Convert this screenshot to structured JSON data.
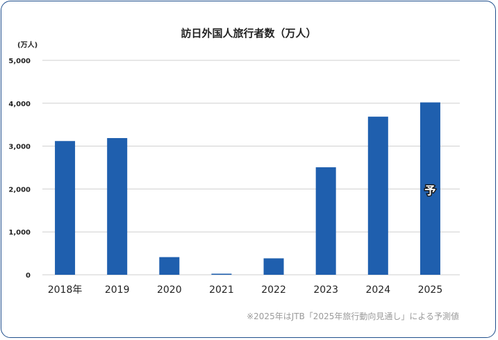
{
  "chart_data": {
    "type": "bar",
    "title": "訪日外国人旅行者数（万人）",
    "unit_label": "(万人)",
    "categories": [
      "2018年",
      "2019",
      "2020",
      "2021",
      "2022",
      "2023",
      "2024",
      "2025"
    ],
    "values": [
      3119,
      3188,
      412,
      25,
      383,
      2507,
      3687,
      4020
    ],
    "ylim": [
      0,
      5000
    ],
    "yticks": [
      "0",
      "1,000",
      "2,000",
      "3,000",
      "4,000",
      "5,000"
    ],
    "ytick_values": [
      0,
      1000,
      2000,
      3000,
      4000,
      5000
    ],
    "grid": true,
    "bar_color": "#1f5fae",
    "forecast_label": "予",
    "forecast_category": "2025",
    "note": "※2025年はJTB「2025年旅行動向見通し」による予測値"
  }
}
